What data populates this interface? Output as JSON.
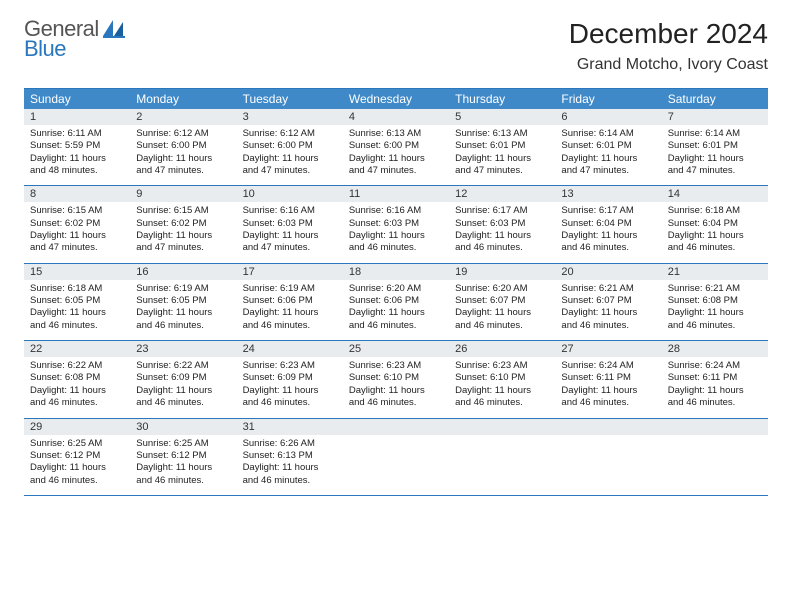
{
  "brand": {
    "word1": "General",
    "word2": "Blue"
  },
  "header": {
    "title": "December 2024",
    "location": "Grand Motcho, Ivory Coast"
  },
  "colors": {
    "accent": "#2a77bd",
    "header_bg": "#3f89c9",
    "daynum_bg": "#e9ecef",
    "text": "#222222",
    "logo_gray": "#555555",
    "logo_blue": "#2a77bd"
  },
  "dow": [
    "Sunday",
    "Monday",
    "Tuesday",
    "Wednesday",
    "Thursday",
    "Friday",
    "Saturday"
  ],
  "weeks": [
    [
      {
        "n": "1",
        "sr": "6:11 AM",
        "ss": "5:59 PM",
        "dl": "11 hours and 48 minutes."
      },
      {
        "n": "2",
        "sr": "6:12 AM",
        "ss": "6:00 PM",
        "dl": "11 hours and 47 minutes."
      },
      {
        "n": "3",
        "sr": "6:12 AM",
        "ss": "6:00 PM",
        "dl": "11 hours and 47 minutes."
      },
      {
        "n": "4",
        "sr": "6:13 AM",
        "ss": "6:00 PM",
        "dl": "11 hours and 47 minutes."
      },
      {
        "n": "5",
        "sr": "6:13 AM",
        "ss": "6:01 PM",
        "dl": "11 hours and 47 minutes."
      },
      {
        "n": "6",
        "sr": "6:14 AM",
        "ss": "6:01 PM",
        "dl": "11 hours and 47 minutes."
      },
      {
        "n": "7",
        "sr": "6:14 AM",
        "ss": "6:01 PM",
        "dl": "11 hours and 47 minutes."
      }
    ],
    [
      {
        "n": "8",
        "sr": "6:15 AM",
        "ss": "6:02 PM",
        "dl": "11 hours and 47 minutes."
      },
      {
        "n": "9",
        "sr": "6:15 AM",
        "ss": "6:02 PM",
        "dl": "11 hours and 47 minutes."
      },
      {
        "n": "10",
        "sr": "6:16 AM",
        "ss": "6:03 PM",
        "dl": "11 hours and 47 minutes."
      },
      {
        "n": "11",
        "sr": "6:16 AM",
        "ss": "6:03 PM",
        "dl": "11 hours and 46 minutes."
      },
      {
        "n": "12",
        "sr": "6:17 AM",
        "ss": "6:03 PM",
        "dl": "11 hours and 46 minutes."
      },
      {
        "n": "13",
        "sr": "6:17 AM",
        "ss": "6:04 PM",
        "dl": "11 hours and 46 minutes."
      },
      {
        "n": "14",
        "sr": "6:18 AM",
        "ss": "6:04 PM",
        "dl": "11 hours and 46 minutes."
      }
    ],
    [
      {
        "n": "15",
        "sr": "6:18 AM",
        "ss": "6:05 PM",
        "dl": "11 hours and 46 minutes."
      },
      {
        "n": "16",
        "sr": "6:19 AM",
        "ss": "6:05 PM",
        "dl": "11 hours and 46 minutes."
      },
      {
        "n": "17",
        "sr": "6:19 AM",
        "ss": "6:06 PM",
        "dl": "11 hours and 46 minutes."
      },
      {
        "n": "18",
        "sr": "6:20 AM",
        "ss": "6:06 PM",
        "dl": "11 hours and 46 minutes."
      },
      {
        "n": "19",
        "sr": "6:20 AM",
        "ss": "6:07 PM",
        "dl": "11 hours and 46 minutes."
      },
      {
        "n": "20",
        "sr": "6:21 AM",
        "ss": "6:07 PM",
        "dl": "11 hours and 46 minutes."
      },
      {
        "n": "21",
        "sr": "6:21 AM",
        "ss": "6:08 PM",
        "dl": "11 hours and 46 minutes."
      }
    ],
    [
      {
        "n": "22",
        "sr": "6:22 AM",
        "ss": "6:08 PM",
        "dl": "11 hours and 46 minutes."
      },
      {
        "n": "23",
        "sr": "6:22 AM",
        "ss": "6:09 PM",
        "dl": "11 hours and 46 minutes."
      },
      {
        "n": "24",
        "sr": "6:23 AM",
        "ss": "6:09 PM",
        "dl": "11 hours and 46 minutes."
      },
      {
        "n": "25",
        "sr": "6:23 AM",
        "ss": "6:10 PM",
        "dl": "11 hours and 46 minutes."
      },
      {
        "n": "26",
        "sr": "6:23 AM",
        "ss": "6:10 PM",
        "dl": "11 hours and 46 minutes."
      },
      {
        "n": "27",
        "sr": "6:24 AM",
        "ss": "6:11 PM",
        "dl": "11 hours and 46 minutes."
      },
      {
        "n": "28",
        "sr": "6:24 AM",
        "ss": "6:11 PM",
        "dl": "11 hours and 46 minutes."
      }
    ],
    [
      {
        "n": "29",
        "sr": "6:25 AM",
        "ss": "6:12 PM",
        "dl": "11 hours and 46 minutes."
      },
      {
        "n": "30",
        "sr": "6:25 AM",
        "ss": "6:12 PM",
        "dl": "11 hours and 46 minutes."
      },
      {
        "n": "31",
        "sr": "6:26 AM",
        "ss": "6:13 PM",
        "dl": "11 hours and 46 minutes."
      },
      null,
      null,
      null,
      null
    ]
  ],
  "labels": {
    "sunrise": "Sunrise:",
    "sunset": "Sunset:",
    "daylight": "Daylight:"
  }
}
